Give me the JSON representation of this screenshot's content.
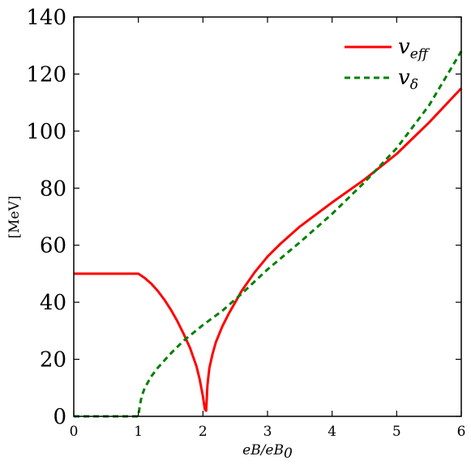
{
  "chart_data": {
    "type": "line",
    "xlabel": "eB/eB",
    "xlabel_sub": "0",
    "ylabel": "[MeV]",
    "xlim": [
      0,
      6
    ],
    "ylim": [
      0,
      140
    ],
    "x_ticks": [
      "0",
      "1",
      "2",
      "3",
      "4",
      "5",
      "6"
    ],
    "y_ticks": [
      "0",
      "20",
      "40",
      "60",
      "80",
      "100",
      "120",
      "140"
    ],
    "grid": false,
    "legend_position": "top-right",
    "series": [
      {
        "name": "v",
        "name_sub": "eff",
        "color": "#ff0000",
        "style": "solid",
        "points": [
          [
            0,
            50
          ],
          [
            1.0,
            50
          ],
          [
            1.1,
            48.5
          ],
          [
            1.2,
            46.5
          ],
          [
            1.3,
            44
          ],
          [
            1.4,
            41
          ],
          [
            1.5,
            37.5
          ],
          [
            1.6,
            33.5
          ],
          [
            1.7,
            29
          ],
          [
            1.8,
            24
          ],
          [
            1.9,
            17.5
          ],
          [
            1.95,
            13
          ],
          [
            2.0,
            7
          ],
          [
            2.03,
            2.5
          ],
          [
            2.05,
            2
          ],
          [
            2.07,
            11
          ],
          [
            2.1,
            17
          ],
          [
            2.15,
            22
          ],
          [
            2.2,
            26
          ],
          [
            2.3,
            31.5
          ],
          [
            2.4,
            36
          ],
          [
            2.5,
            40
          ],
          [
            2.6,
            44
          ],
          [
            2.8,
            50.5
          ],
          [
            3.0,
            56
          ],
          [
            3.2,
            60.5
          ],
          [
            3.5,
            66.5
          ],
          [
            4.0,
            75
          ],
          [
            4.5,
            83
          ],
          [
            5.0,
            92
          ],
          [
            5.5,
            103
          ],
          [
            6.0,
            115
          ]
        ]
      },
      {
        "name": "v",
        "name_sub": "δ",
        "color": "#008000",
        "style": "dashed",
        "points": [
          [
            0,
            0
          ],
          [
            1.0,
            0
          ],
          [
            1.02,
            3.5
          ],
          [
            1.05,
            7
          ],
          [
            1.1,
            10
          ],
          [
            1.2,
            14
          ],
          [
            1.3,
            17
          ],
          [
            1.5,
            22
          ],
          [
            1.7,
            26.5
          ],
          [
            2.0,
            32
          ],
          [
            2.3,
            37
          ],
          [
            2.6,
            43
          ],
          [
            3.0,
            51.5
          ],
          [
            3.5,
            61
          ],
          [
            4.0,
            71
          ],
          [
            4.5,
            82
          ],
          [
            5.0,
            94
          ],
          [
            5.5,
            109
          ],
          [
            6.0,
            128
          ]
        ]
      }
    ]
  }
}
